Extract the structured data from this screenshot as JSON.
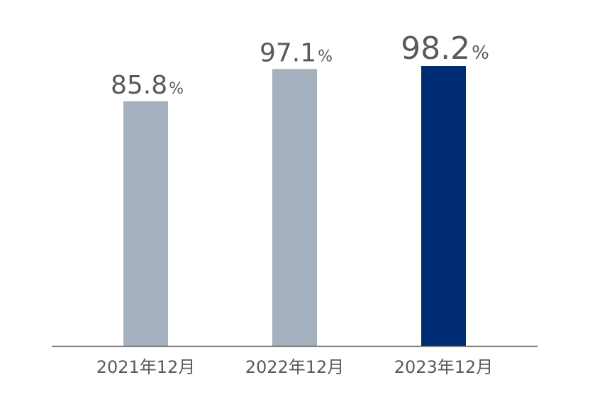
{
  "chart_data": {
    "type": "bar",
    "categories": [
      "2021年12月",
      "2022年12月",
      "2023年12月"
    ],
    "values": [
      85.8,
      97.1,
      98.2
    ],
    "value_labels": [
      "85.8",
      "97.1",
      "98.2"
    ],
    "unit": "%",
    "highlight_index": 2,
    "title": "",
    "xlabel": "",
    "ylabel": "",
    "ylim": [
      0,
      100
    ],
    "grid": false,
    "colors": {
      "bar": "#a4b0be",
      "highlight": "#002c73",
      "axis": "#5a5a5a",
      "text": "#5a5a5a"
    }
  }
}
